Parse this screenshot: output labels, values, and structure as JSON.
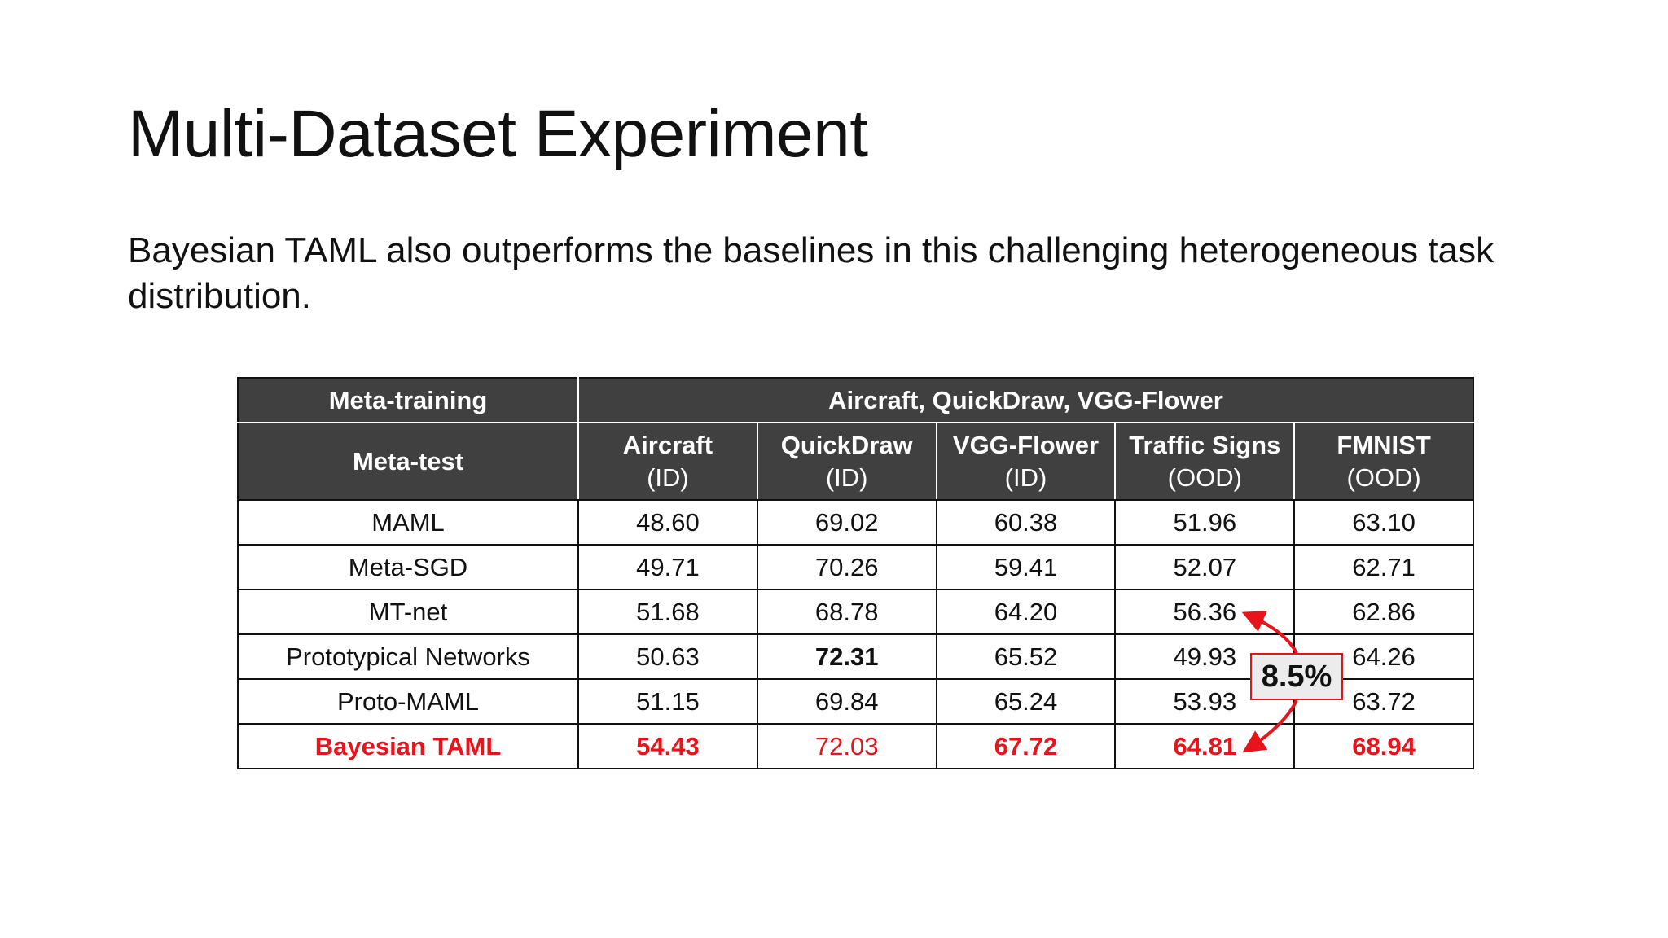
{
  "slide": {
    "title": "Multi-Dataset Experiment",
    "body": "Bayesian TAML also outperforms the baselines in this challenging heterogeneous task distribution."
  },
  "table": {
    "meta_training_label": "Meta-training",
    "meta_training_value": "Aircraft, QuickDraw, VGG-Flower",
    "meta_test_label": "Meta-test",
    "columns": [
      {
        "name": "Aircraft",
        "sub": "(ID)"
      },
      {
        "name": "QuickDraw",
        "sub": "(ID)"
      },
      {
        "name": "VGG-Flower",
        "sub": "(ID)"
      },
      {
        "name": "Traffic Signs",
        "sub": "(OOD)"
      },
      {
        "name": "FMNIST",
        "sub": "(OOD)"
      }
    ],
    "rows": [
      {
        "method": "MAML",
        "values": [
          "48.60",
          "69.02",
          "60.38",
          "51.96",
          "63.10"
        ]
      },
      {
        "method": "Meta-SGD",
        "values": [
          "49.71",
          "70.26",
          "59.41",
          "52.07",
          "62.71"
        ]
      },
      {
        "method": "MT-net",
        "values": [
          "51.68",
          "68.78",
          "64.20",
          "56.36",
          "62.86"
        ]
      },
      {
        "method": "Prototypical Networks",
        "values": [
          "50.63",
          "72.31",
          "65.52",
          "49.93",
          "64.26"
        ]
      },
      {
        "method": "Proto-MAML",
        "values": [
          "51.15",
          "69.84",
          "65.24",
          "53.93",
          "63.72"
        ]
      },
      {
        "method": "Bayesian TAML",
        "values": [
          "54.43",
          "72.03",
          "67.72",
          "64.81",
          "68.94"
        ]
      }
    ]
  },
  "annotation": {
    "improvement_label": "8.5%",
    "color": "#e8141c"
  },
  "colors": {
    "header_bg": "#404040",
    "highlight": "#e8141c"
  }
}
